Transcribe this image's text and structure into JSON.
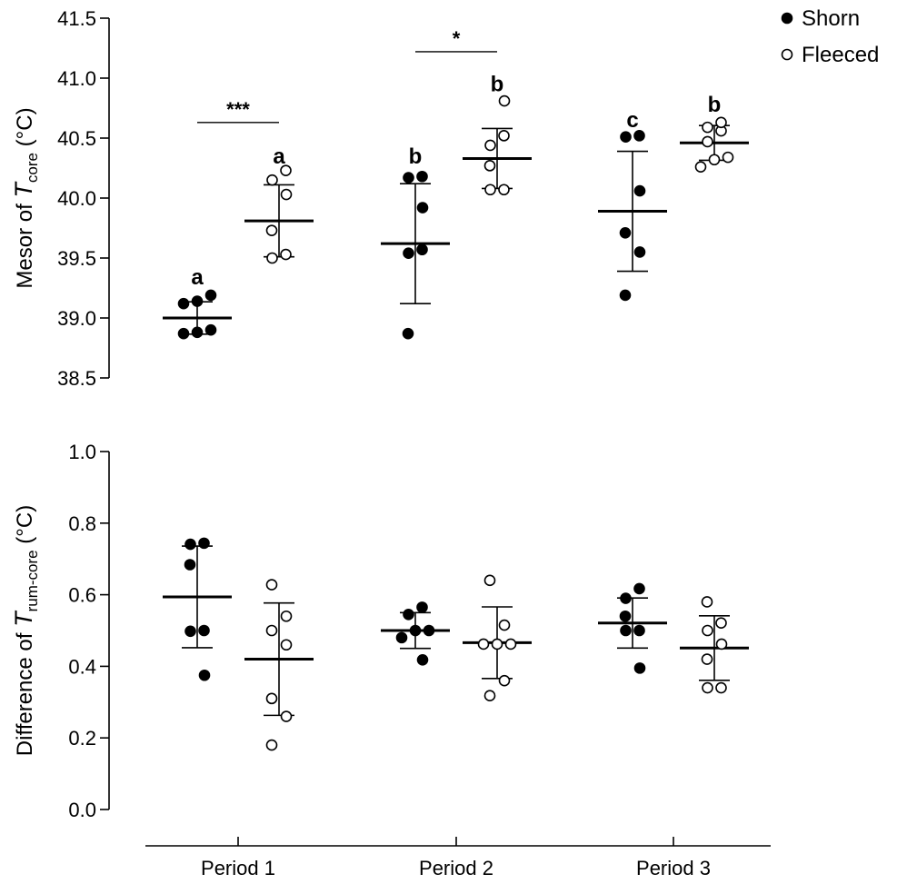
{
  "legend": {
    "position": "top-right",
    "items": [
      {
        "label": "Shorn",
        "marker": "filled-circle"
      },
      {
        "label": "Fleeced",
        "marker": "open-circle"
      }
    ]
  },
  "x_axis": {
    "categories": [
      "Period 1",
      "Period 2",
      "Period 3"
    ]
  },
  "chart_data": [
    {
      "type": "scatter",
      "panel": "top",
      "ylabel": {
        "prefix": "Mesor of ",
        "symbol": "T",
        "subscript": "core",
        "suffix": " (°C)"
      },
      "ylim": [
        38.5,
        41.5
      ],
      "yticks": [
        "38.5",
        "39.0",
        "39.5",
        "40.0",
        "40.5",
        "41.0",
        "41.5"
      ],
      "categories": [
        "Period 1",
        "Period 2",
        "Period 3"
      ],
      "series": [
        {
          "name": "Shorn",
          "marker": "filled",
          "points": [
            [
              39.19,
              39.12,
              38.87,
              39.14,
              38.88,
              38.9
            ],
            [
              38.87,
              39.54,
              39.57,
              39.92,
              40.18,
              40.17
            ],
            [
              39.19,
              39.55,
              39.71,
              40.06,
              40.52,
              40.51
            ]
          ],
          "mean": [
            39.0,
            39.62,
            39.89
          ],
          "sd": [
            0.135,
            0.5,
            0.5
          ]
        },
        {
          "name": "Fleeced",
          "marker": "open",
          "points": [
            [
              39.5,
              39.53,
              39.73,
              40.03,
              40.15,
              40.23
            ],
            [
              40.07,
              40.07,
              40.27,
              40.44,
              40.52,
              40.81
            ],
            [
              40.26,
              40.32,
              40.34,
              40.47,
              40.56,
              40.59,
              40.63
            ]
          ],
          "mean": [
            39.81,
            40.33,
            40.46
          ],
          "sd": [
            0.3,
            0.25,
            0.145
          ]
        }
      ],
      "group_letters": [
        {
          "category": 0,
          "series": "Shorn",
          "label": "a",
          "y": 39.34
        },
        {
          "category": 0,
          "series": "Fleeced",
          "label": "a",
          "y": 40.35
        },
        {
          "category": 1,
          "series": "Shorn",
          "label": "b",
          "y": 40.35
        },
        {
          "category": 1,
          "series": "Fleeced",
          "label": "b",
          "y": 40.95
        },
        {
          "category": 2,
          "series": "Shorn",
          "label": "c",
          "y": 40.65
        },
        {
          "category": 2,
          "series": "Fleeced",
          "label": "b",
          "y": 40.78
        }
      ],
      "significance": [
        {
          "category": 0,
          "label": "***",
          "y": 40.63
        },
        {
          "category": 1,
          "label": "*",
          "y": 41.22
        }
      ]
    },
    {
      "type": "scatter",
      "panel": "bottom",
      "ylabel": {
        "prefix": "Difference of ",
        "symbol": "T",
        "subscript": "rum-core",
        "suffix": " (°C)"
      },
      "ylim": [
        0.0,
        1.0
      ],
      "yticks": [
        "0.0",
        "0.2",
        "0.4",
        "0.6",
        "0.8",
        "1.0"
      ],
      "categories": [
        "Period 1",
        "Period 2",
        "Period 3"
      ],
      "series": [
        {
          "name": "Shorn",
          "marker": "filled",
          "points": [
            [
              0.744,
              0.741,
              0.684,
              0.498,
              0.5,
              0.375
            ],
            [
              0.545,
              0.565,
              0.5,
              0.5,
              0.48,
              0.418
            ],
            [
              0.617,
              0.59,
              0.54,
              0.5,
              0.5,
              0.395
            ]
          ],
          "mean": [
            0.594,
            0.5,
            0.521
          ],
          "sd": [
            0.142,
            0.05,
            0.07
          ]
        },
        {
          "name": "Fleeced",
          "marker": "open",
          "points": [
            [
              0.628,
              0.54,
              0.5,
              0.46,
              0.31,
              0.26,
              0.18
            ],
            [
              0.64,
              0.515,
              0.462,
              0.462,
              0.462,
              0.36,
              0.318
            ],
            [
              0.58,
              0.521,
              0.5,
              0.462,
              0.42,
              0.34,
              0.34
            ]
          ],
          "mean": [
            0.42,
            0.466,
            0.451
          ],
          "sd": [
            0.157,
            0.1,
            0.09
          ]
        }
      ]
    }
  ]
}
